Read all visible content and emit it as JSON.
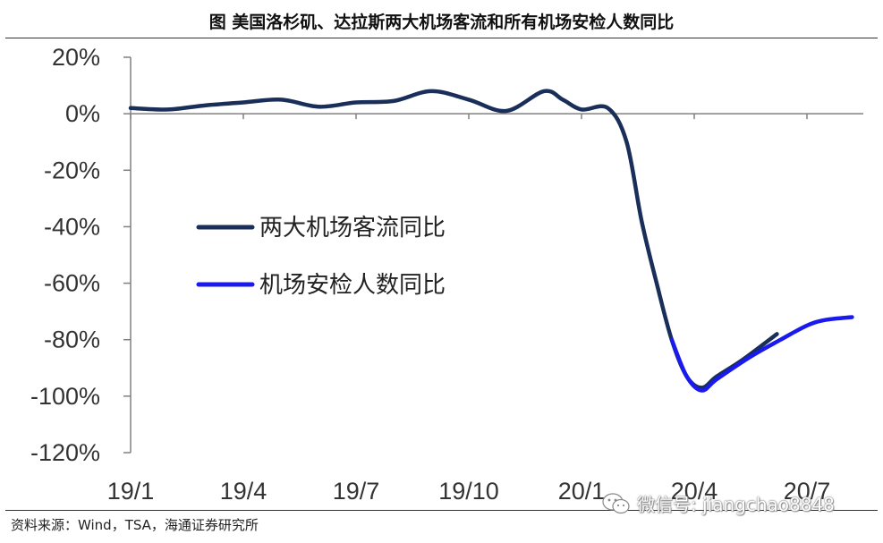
{
  "title": "图  美国洛杉矶、达拉斯两大机场客流和所有机场安检人数同比",
  "source": "资料来源：Wind，TSA，海通证券研究所",
  "watermark": "微信号: jiangchao8848",
  "colors": {
    "series1": "#1a2e5a",
    "series2": "#1a1aee",
    "axis": "#808080"
  },
  "chart_data": {
    "type": "line",
    "ylim": [
      -120,
      20
    ],
    "yticks": [
      20,
      0,
      -20,
      -40,
      -60,
      -80,
      -100,
      -120
    ],
    "ytick_labels": [
      "20%",
      "0%",
      "-20%",
      "-40%",
      "-60%",
      "-80%",
      "-100%",
      "-120%"
    ],
    "xlim": [
      0,
      19.5
    ],
    "xticks": [
      0,
      3,
      6,
      9,
      12,
      15,
      18
    ],
    "xtick_labels": [
      "19/1",
      "19/4",
      "19/7",
      "19/10",
      "20/1",
      "20/4",
      "20/7"
    ],
    "legend_position": "middle-left",
    "series": [
      {
        "name": "两大机场客流同比",
        "color_key": "series1",
        "x": [
          0,
          1,
          2,
          3,
          4,
          5,
          6,
          7,
          8,
          9,
          10,
          11,
          11.5,
          12,
          12.7,
          13.2,
          13.6,
          14,
          14.4,
          14.8,
          15.2,
          15.6,
          16.3,
          17.2
        ],
        "y": [
          2,
          1.5,
          3,
          4,
          5,
          2.5,
          4,
          4.5,
          8,
          5,
          1,
          8,
          5,
          1.5,
          2,
          -10,
          -38,
          -60,
          -80,
          -93,
          -97,
          -93,
          -87,
          -78
        ]
      },
      {
        "name": "机场安检人数同比",
        "color_key": "series2",
        "x": [
          14.4,
          14.8,
          15.2,
          15.6,
          16.5,
          17.3,
          18,
          18.5,
          19.2
        ],
        "y": [
          -80,
          -93,
          -98,
          -94,
          -86,
          -80,
          -75,
          -73,
          -72
        ]
      }
    ]
  }
}
